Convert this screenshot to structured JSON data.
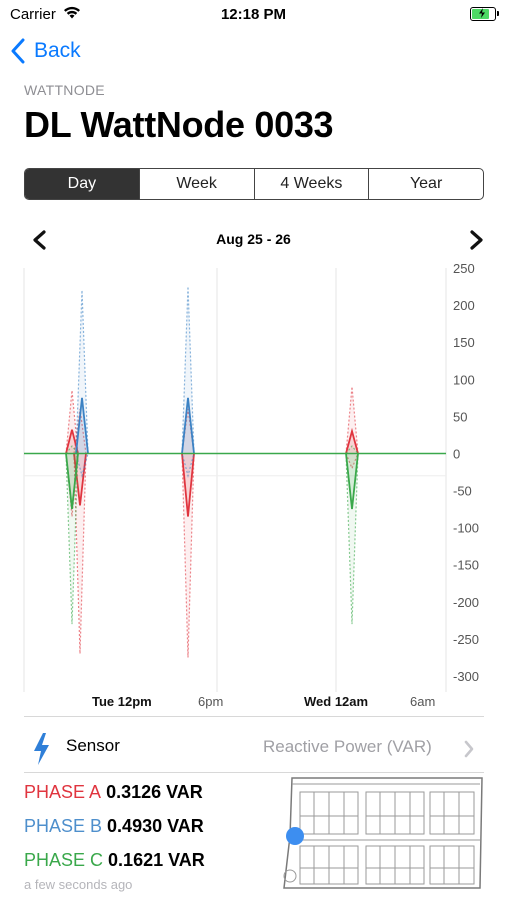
{
  "status_bar": {
    "carrier": "Carrier",
    "time": "12:18 PM",
    "battery_color": "#4cd964",
    "battery_level": 0.85
  },
  "nav": {
    "back_label": "Back"
  },
  "header": {
    "overline": "WATTNODE",
    "title": "DL WattNode 0033"
  },
  "segments": {
    "items": [
      "Day",
      "Week",
      "4 Weeks",
      "Year"
    ],
    "selected": "Day"
  },
  "date_range": "Aug 25 - 26",
  "chart_data": {
    "type": "line",
    "title": "",
    "xlabel": "",
    "ylabel": "",
    "ylim": [
      -300,
      250
    ],
    "y_ticks": [
      "250",
      "200",
      "150",
      "100",
      "50",
      "0",
      "-50",
      "-100",
      "-150",
      "-200",
      "-250",
      "-300"
    ],
    "x_ticks": [
      {
        "label": "Tue 12pm",
        "bold": true
      },
      {
        "label": "6pm",
        "bold": false
      },
      {
        "label": "Wed 12am",
        "bold": true
      },
      {
        "label": "6am",
        "bold": false
      }
    ],
    "grid": true,
    "legend": "none",
    "series": [
      {
        "color": "#e0353f",
        "spikes": [
          {
            "avg": 32,
            "max": 85,
            "min": -85
          },
          {
            "avg": -70,
            "max": 60,
            "min": -270
          },
          {
            "avg": -85,
            "max": 60,
            "min": -275
          },
          {
            "avg": 30,
            "max": 90,
            "min": -20
          }
        ]
      },
      {
        "color": "#3b82c4",
        "spikes": [
          {
            "avg": 75,
            "max": 220,
            "min": -30
          },
          {
            "avg": 75,
            "max": 225,
            "min": -30
          }
        ]
      },
      {
        "color": "#3aa84b",
        "spikes": [
          {
            "avg": -75,
            "max": 10,
            "min": -230
          },
          {
            "avg": -75,
            "max": 10,
            "min": -230
          }
        ]
      }
    ],
    "baseline_color": "#3aa84b"
  },
  "sensor": {
    "label": "Sensor",
    "value": "Reactive Power (VAR)",
    "icon": "lightning-bolt-icon",
    "icon_color": "#2f7fd8"
  },
  "phases": [
    {
      "name": "PHASE A",
      "value": "0.3126 VAR",
      "color": "#e0353f"
    },
    {
      "name": "PHASE B",
      "value": "0.4930 VAR",
      "color": "#4e8fcc"
    },
    {
      "name": "PHASE C",
      "value": "0.1621 VAR",
      "color": "#3aa84b"
    }
  ],
  "updated": "a few seconds ago",
  "floorplan": {
    "marker_color": "#3d8ef0"
  }
}
